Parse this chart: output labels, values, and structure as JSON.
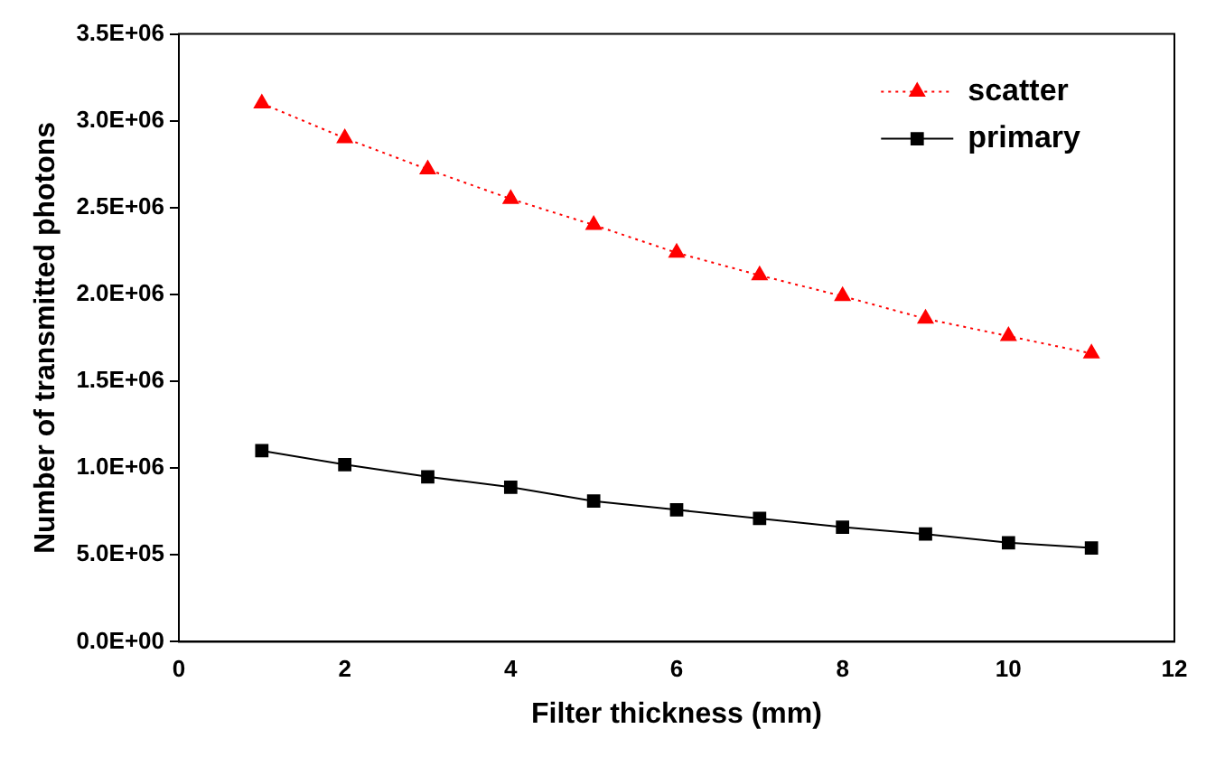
{
  "chart_data": {
    "type": "line",
    "xlabel": "Filter thickness (mm)",
    "ylabel": "Number of transmitted photons",
    "x": [
      1,
      2,
      3,
      4,
      5,
      6,
      7,
      8,
      9,
      10,
      11
    ],
    "series": [
      {
        "name": "scatter",
        "color": "#ff0000",
        "marker": "triangle",
        "line_style": "dotted",
        "values": [
          3100000,
          2900000,
          2720000,
          2550000,
          2400000,
          2240000,
          2110000,
          1990000,
          1860000,
          1760000,
          1660000
        ]
      },
      {
        "name": "primary",
        "color": "#000000",
        "marker": "square",
        "line_style": "solid",
        "values": [
          1100000,
          1020000,
          950000,
          890000,
          810000,
          760000,
          710000,
          660000,
          620000,
          570000,
          540000
        ]
      }
    ],
    "xlim": [
      0,
      12
    ],
    "xticks": [
      0,
      2,
      4,
      6,
      8,
      10,
      12
    ],
    "ylim": [
      0,
      3500000
    ],
    "yticks": [
      {
        "value": 0,
        "label": "0.0E+00"
      },
      {
        "value": 500000,
        "label": "5.0E+05"
      },
      {
        "value": 1000000,
        "label": "1.0E+06"
      },
      {
        "value": 1500000,
        "label": "1.5E+06"
      },
      {
        "value": 2000000,
        "label": "2.0E+06"
      },
      {
        "value": 2500000,
        "label": "2.5E+06"
      },
      {
        "value": 3000000,
        "label": "3.0E+06"
      },
      {
        "value": 3500000,
        "label": "3.5E+06"
      }
    ],
    "grid": false,
    "legend": "top right"
  }
}
